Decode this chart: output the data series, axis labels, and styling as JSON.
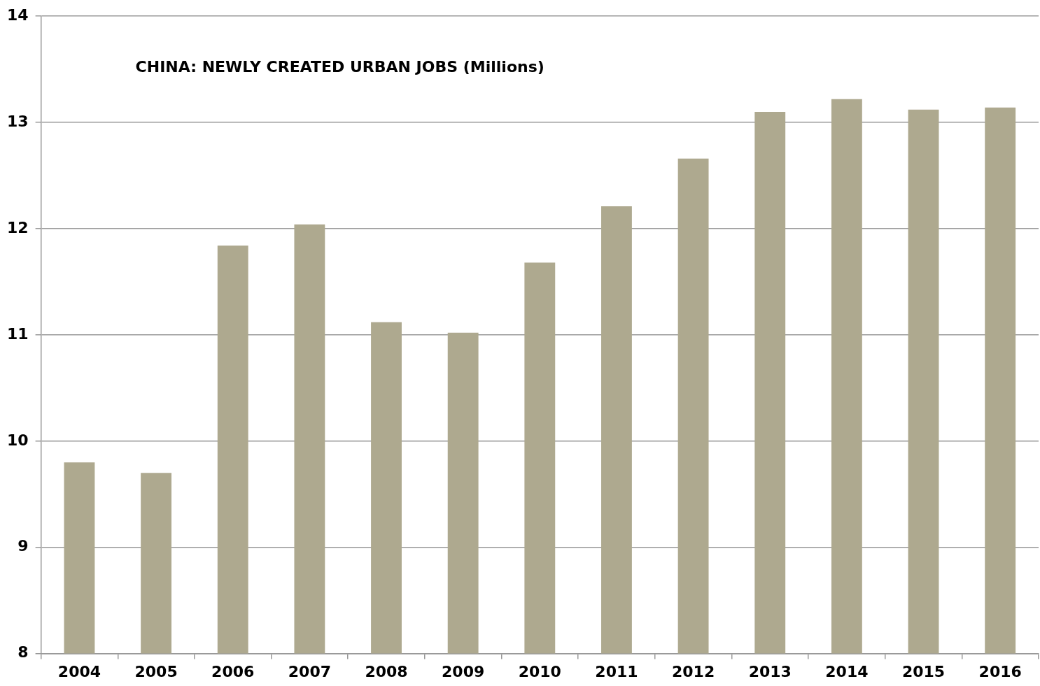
{
  "chart_data": {
    "type": "bar",
    "title": "CHINA: NEWLY CREATED URBAN JOBS (Millions)",
    "categories": [
      "2004",
      "2005",
      "2006",
      "2007",
      "2008",
      "2009",
      "2010",
      "2011",
      "2012",
      "2013",
      "2014",
      "2015",
      "2016"
    ],
    "values": [
      9.8,
      9.7,
      11.84,
      12.04,
      11.12,
      11.02,
      11.68,
      12.21,
      12.66,
      13.1,
      13.22,
      13.12,
      13.14
    ],
    "color": "#aea98f",
    "ylim": [
      8,
      14
    ],
    "yticks": [
      8,
      9,
      10,
      11,
      12,
      13,
      14
    ],
    "grid": "y",
    "legend": false
  }
}
